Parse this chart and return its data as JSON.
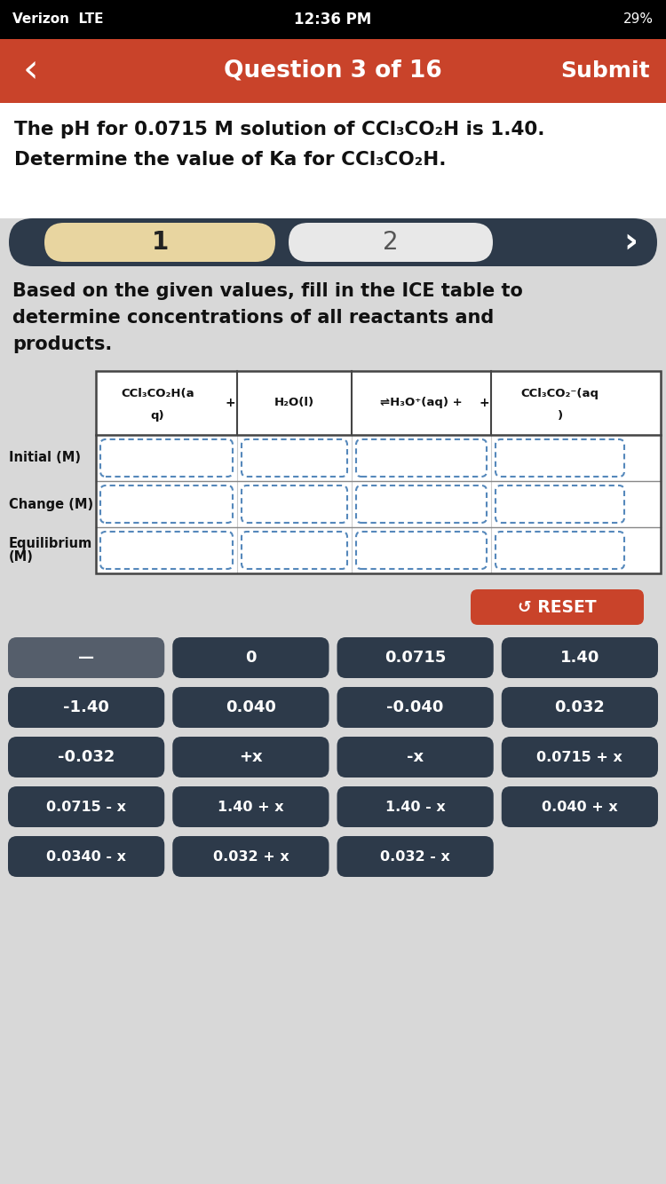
{
  "status_bar_bg": "#000000",
  "status_carrier": "Verizon  LTE",
  "status_time": "12:36 PM",
  "status_battery": "29%",
  "nav_bg": "#c9432a",
  "nav_title": "Question 3 of 16",
  "nav_submit": "Submit",
  "nav_back": "‹",
  "body_bg": "#d8d8d8",
  "white_bg": "#ffffff",
  "q_line1": "The pH for 0.0715 M solution of CCl₃CO₂H is 1.40.",
  "q_line2": "Determine the value of Ka for CCl₃CO₂H.",
  "tab_bg": "#2d3a4a",
  "tab1_label": "1",
  "tab1_color": "#e8d5a0",
  "tab2_label": "2",
  "tab2_color": "#e8e8e8",
  "instruction_line1": "Based on the given values, fill in the ICE table to",
  "instruction_line2": "determine concentrations of all reactants and",
  "instruction_line3": "products.",
  "table_border": "#444444",
  "cell_dash_color": "#5588bb",
  "col_header_line1": [
    "CCl₃CO₂H(a",
    "H₂O(l)",
    "⇌H₃O⁺(aq) +",
    "CCl₃CO₂⁻(aq"
  ],
  "col_header_line2": [
    "q)",
    "",
    "",
    ")"
  ],
  "row_labels": [
    "Initial (M)",
    "Change (M)",
    "Equilibrium\n(M)"
  ],
  "reset_bg": "#c9432a",
  "reset_label": "↺ RESET",
  "btn_dark": "#2d3a4a",
  "btn_gray": "#555e6b",
  "btn_rows": [
    [
      "—",
      "0",
      "0.0715",
      "1.40"
    ],
    [
      "-1.40",
      "0.040",
      "-0.040",
      "0.032"
    ],
    [
      "-0.032",
      "+x",
      "-x",
      "0.0715 + x"
    ],
    [
      "0.0715 - x",
      "1.40 + x",
      "1.40 - x",
      "0.040 + x"
    ],
    [
      "0.0340 - x",
      "0.032 + x",
      "0.032 - x",
      null
    ]
  ]
}
